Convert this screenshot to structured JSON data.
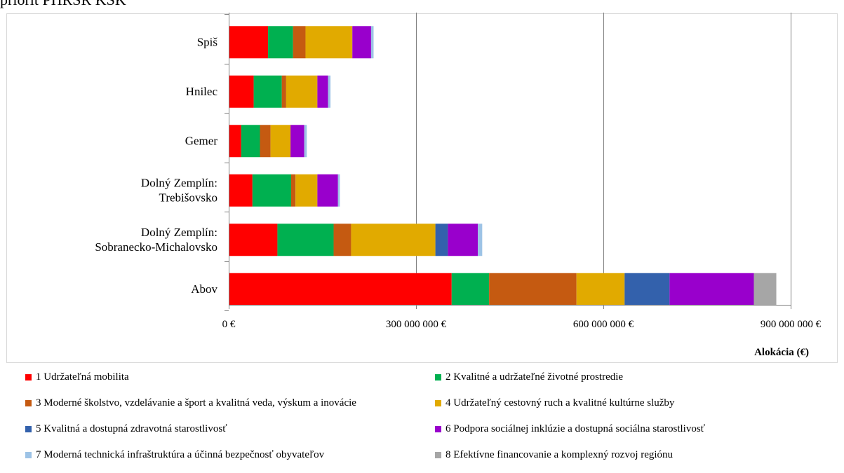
{
  "header": {
    "partial_title": "priorít PHRSR KSK"
  },
  "chart_data": {
    "type": "bar",
    "orientation": "horizontal",
    "stacked": true,
    "title": "",
    "xlabel": "Alokácia (€)",
    "ylabel": "",
    "xlim": [
      0,
      900000000
    ],
    "x_ticks": [
      0,
      300000000,
      600000000,
      900000000
    ],
    "x_tick_labels": [
      "0 €",
      "300 000 000 €",
      "600 000 000 €",
      "900 000 000 €"
    ],
    "grid": "vertical-major",
    "legend_position": "bottom",
    "categories": [
      "Spiš",
      "Hnilec",
      "Gemer",
      "Dolný Zemplín: Trebišovsko",
      "Dolný Zemplín: Sobranecko-Michalovsko",
      "Abov"
    ],
    "category_label_lines": [
      [
        "Spiš"
      ],
      [
        "Hnilec"
      ],
      [
        "Gemer"
      ],
      [
        "Dolný Zemplín:",
        "Trebišovsko"
      ],
      [
        "Dolný Zemplín:",
        "Sobranecko-Michalovsko"
      ],
      [
        "Abov"
      ]
    ],
    "series": [
      {
        "name": "1 Udržateľná mobilita",
        "color": "#FF0000",
        "values": [
          63000000,
          40000000,
          20000000,
          38000000,
          78000000,
          357000000
        ]
      },
      {
        "name": "2 Kvalitné a udržateľné životné prostredie",
        "color": "#00B050",
        "values": [
          40000000,
          45000000,
          30000000,
          62000000,
          90000000,
          60000000
        ]
      },
      {
        "name": "3 Moderné školstvo, vzdelávanie a šport a kvalitná veda, výskum a inovácie",
        "color": "#C55A11",
        "values": [
          20000000,
          7000000,
          17000000,
          7000000,
          28000000,
          140000000
        ]
      },
      {
        "name": "4 Udržateľný cestovný ruch a kvalitné kultúrne služby",
        "color": "#E1AA00",
        "values": [
          75000000,
          50000000,
          32000000,
          35000000,
          135000000,
          77000000
        ]
      },
      {
        "name": "5 Kvalitná a dostupná zdravotná starostlivosť",
        "color": "#3361AC",
        "values": [
          0,
          0,
          0,
          0,
          20000000,
          72000000
        ]
      },
      {
        "name": "6 Podpora sociálnej inklúzie a dostupná sociálna starostlivosť",
        "color": "#9900CC",
        "values": [
          30000000,
          17000000,
          22000000,
          33000000,
          48000000,
          135000000
        ]
      },
      {
        "name": "7 Moderná technická infraštruktúra a účinná bezpečnosť obyvateľov",
        "color": "#9DC3E6",
        "values": [
          4000000,
          4000000,
          4000000,
          3000000,
          7000000,
          0
        ]
      },
      {
        "name": "8 Efektívne financovanie a komplexný rozvoj regiónu",
        "color": "#A6A6A6",
        "values": [
          0,
          0,
          0,
          0,
          0,
          36000000
        ]
      }
    ]
  }
}
